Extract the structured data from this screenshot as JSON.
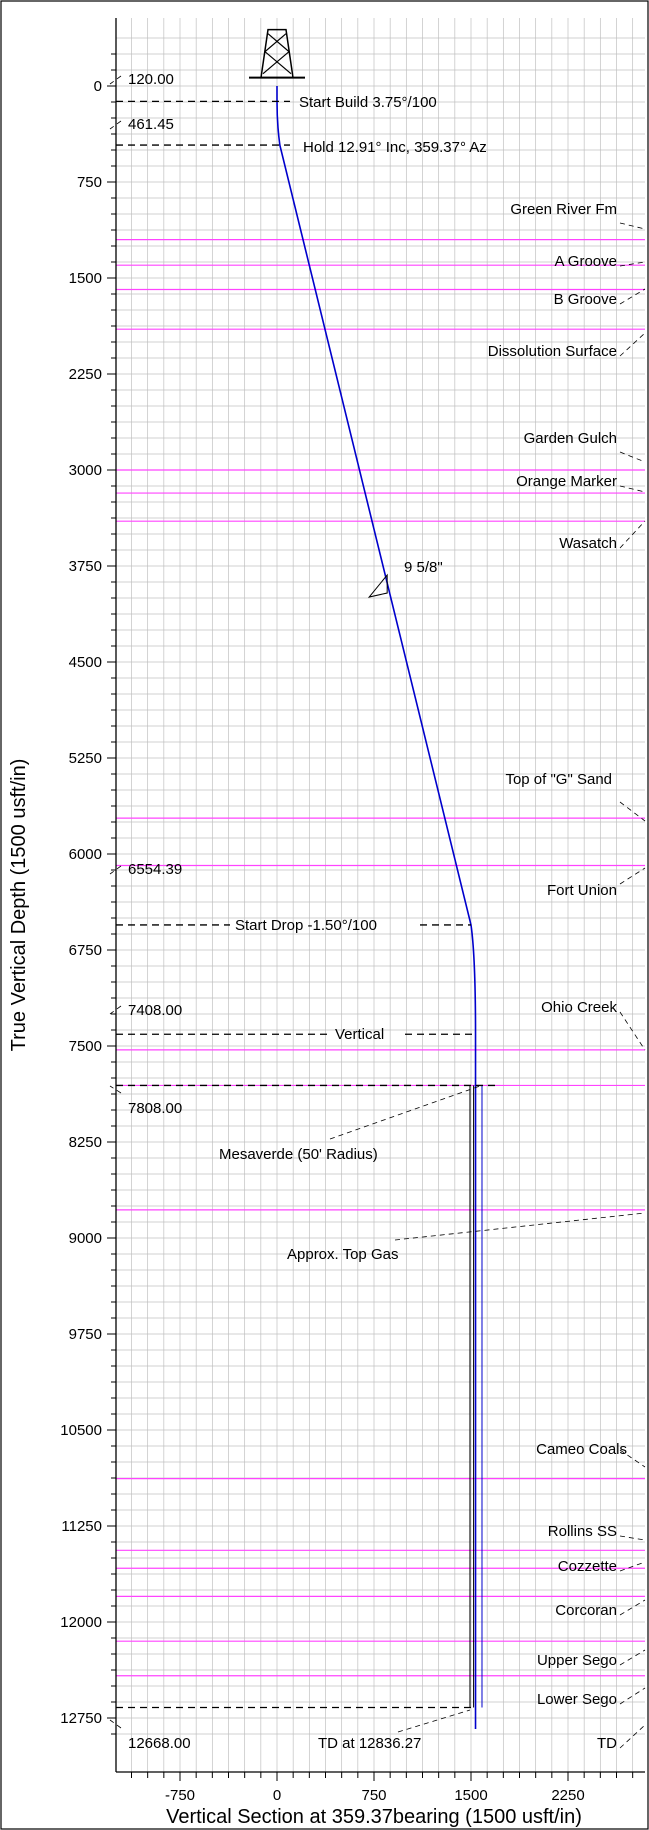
{
  "chart_data": {
    "type": "line",
    "title": "",
    "xlabel": "Vertical Section at 359.37bearing (1500 usft/in)",
    "ylabel": "True Vertical Depth (1500 usft/in)",
    "xlim": [
      -1300,
      2800
    ],
    "ylim": [
      12920,
      -450
    ],
    "x_ticks": [
      -750,
      0,
      750,
      1500,
      2250
    ],
    "y_ticks": [
      0,
      750,
      1500,
      2250,
      3000,
      3750,
      4500,
      5250,
      6000,
      6750,
      7500,
      8250,
      9000,
      9750,
      10500,
      11250,
      12000,
      12750
    ],
    "grid": true,
    "colors": {
      "wellpath": "#0000cc",
      "formation": "#ff44ff",
      "grid": "#c0c0c0",
      "casing": "#000000"
    },
    "series": [
      {
        "x": [
          0,
          0,
          22,
          1500,
          1528,
          1535,
          1535
        ],
        "y": [
          0,
          120,
          461.45,
          6554.39,
          7000,
          7408,
          12836.27
        ]
      }
    ],
    "formations": [
      {
        "name": "Green River Fm",
        "tvd": 1200
      },
      {
        "name": "A Groove",
        "tvd": 1400
      },
      {
        "name": "B Groove",
        "tvd": 1590
      },
      {
        "name": "Dissolution Surface",
        "tvd": 1900
      },
      {
        "name": "Garden Gulch",
        "tvd": 3000
      },
      {
        "name": "Orange Marker",
        "tvd": 3180
      },
      {
        "name": "Wasatch",
        "tvd": 3400
      },
      {
        "name": "Top of \"G\" Sand",
        "tvd": 5720
      },
      {
        "name": "Fort Union",
        "tvd": 6090
      },
      {
        "name": "Ohio Creek",
        "tvd": 7530
      },
      {
        "name": "Mesaverde (50' Radius)",
        "tvd": 7808
      },
      {
        "name": "Approx. Top Gas",
        "tvd": 8780
      },
      {
        "name": "Cameo Coals",
        "tvd": 10880
      },
      {
        "name": "Rollins SS",
        "tvd": 11440
      },
      {
        "name": "Cozzette",
        "tvd": 11580
      },
      {
        "name": "Corcoran",
        "tvd": 11800
      },
      {
        "name": "Upper Sego",
        "tvd": 12150
      },
      {
        "name": "Lower Sego",
        "tvd": 12420
      },
      {
        "name": "TD",
        "tvd": 12668
      }
    ],
    "annotations": {
      "start_build_md": "120.00",
      "start_build": "Start Build 3.75°/100",
      "hold_md": "461.45",
      "hold": "Hold 12.91° Inc, 359.37° Az",
      "casing": "9 5/8\"",
      "start_drop_md": "6554.39",
      "start_drop": "Start Drop -1.50°/100",
      "vertical_md": "7408.00",
      "vertical": "Vertical",
      "mesaverde_md": "7808.00",
      "td_md": "12668.00",
      "td_at": "TD at 12836.27"
    }
  }
}
